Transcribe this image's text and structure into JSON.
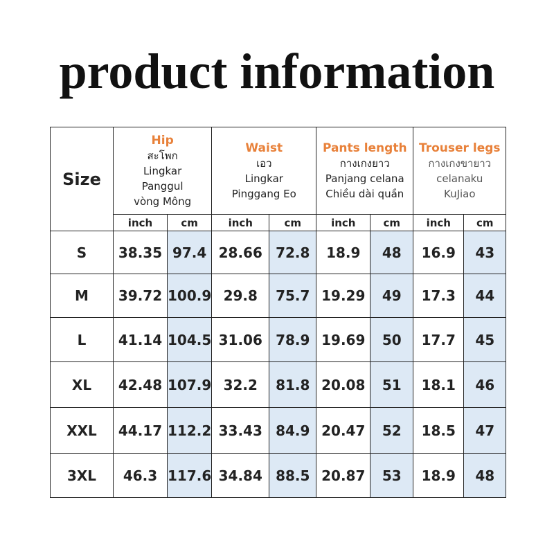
{
  "title": "product information",
  "table": {
    "size_header": "Size",
    "groups": [
      {
        "title": "Hip",
        "lines": [
          "สะโพก",
          "Lingkar",
          "Panggul",
          "vòng Mông"
        ]
      },
      {
        "title": "Waist",
        "lines": [
          "เอว",
          "Lingkar",
          "Pinggang  Eo"
        ]
      },
      {
        "title": "Pants length",
        "lines": [
          "กางเกงยาว",
          "Panjang celana",
          "Chiều dài quần"
        ]
      },
      {
        "title": "Trouser legs",
        "lines": [
          "กางเกงขายาว",
          "celanaku",
          "KuJiao"
        ]
      }
    ],
    "units": [
      "inch",
      "cm",
      "inch",
      "cm",
      "inch",
      "cm",
      "inch",
      "cm"
    ],
    "rows": [
      [
        "S",
        "38.35",
        "97.4",
        "28.66",
        "72.8",
        "18.9",
        "48",
        "16.9",
        "43"
      ],
      [
        "M",
        "39.72",
        "100.9",
        "29.8",
        "75.7",
        "19.29",
        "49",
        "17.3",
        "44"
      ],
      [
        "L",
        "41.14",
        "104.5",
        "31.06",
        "78.9",
        "19.69",
        "50",
        "17.7",
        "45"
      ],
      [
        "XL",
        "42.48",
        "107.9",
        "32.2",
        "81.8",
        "20.08",
        "51",
        "18.1",
        "46"
      ],
      [
        "XXL",
        "44.17",
        "112.2",
        "33.43",
        "84.9",
        "20.47",
        "52",
        "18.5",
        "47"
      ],
      [
        "3XL",
        "46.3",
        "117.6",
        "34.84",
        "88.5",
        "20.87",
        "53",
        "18.9",
        "48"
      ]
    ]
  }
}
